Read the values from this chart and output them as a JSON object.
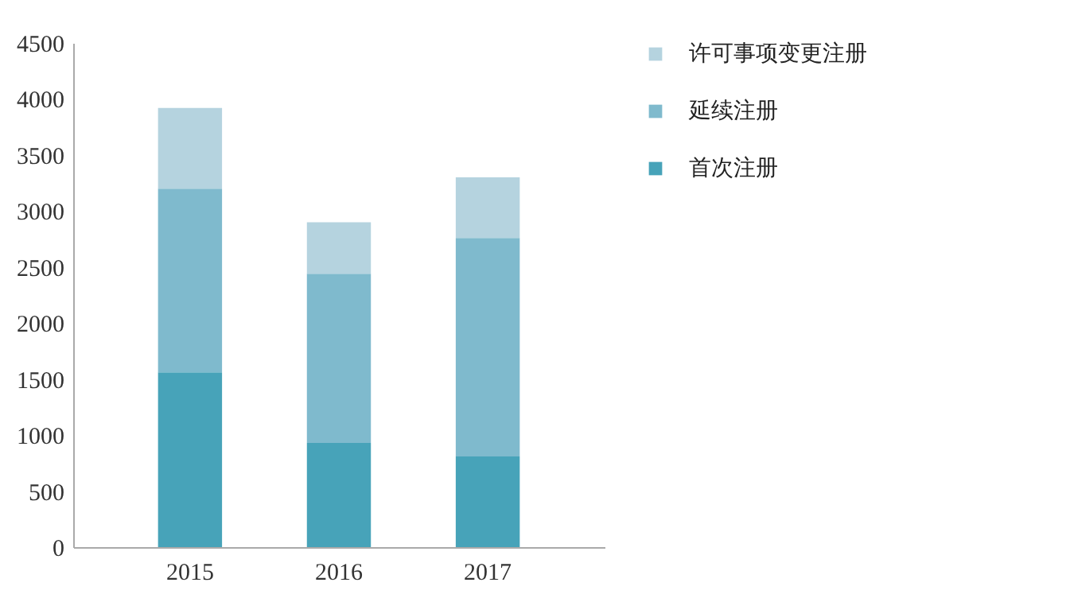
{
  "chart_data": {
    "type": "bar",
    "stacked": true,
    "categories": [
      "2015",
      "2016",
      "2017"
    ],
    "series": [
      {
        "name": "首次注册",
        "color": "#47a3b9",
        "values": [
          1560,
          930,
          810
        ]
      },
      {
        "name": "延续注册",
        "color": "#7fbacd",
        "values": [
          1640,
          1510,
          1950
        ]
      },
      {
        "name": "许可事项变更注册",
        "color": "#b5d3df",
        "values": [
          720,
          460,
          540
        ]
      }
    ],
    "ylim": [
      0,
      4500
    ],
    "yticks": [
      0,
      500,
      1000,
      1500,
      2000,
      2500,
      3000,
      3500,
      4000,
      4500
    ],
    "grid": false,
    "legend": "right"
  }
}
